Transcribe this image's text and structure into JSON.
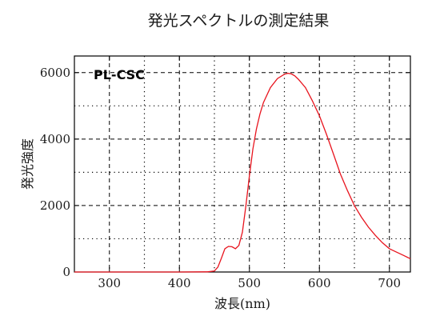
{
  "chart_data": {
    "type": "line",
    "title": "発光スペクトルの測定結果",
    "xlabel": "波長(nm)",
    "ylabel": "発光強度",
    "annotation": "PL-CSC",
    "xlim": [
      250,
      730
    ],
    "ylim": [
      0,
      6500
    ],
    "xticks": [
      300,
      400,
      500,
      600,
      700
    ],
    "yticks": [
      0,
      2000,
      4000,
      6000
    ],
    "x_minor_grid": [
      350,
      450,
      550,
      650
    ],
    "y_minor_grid": [
      1000,
      3000,
      5000
    ],
    "grid": "on",
    "line_color": "#e8141e",
    "series": [
      {
        "x": [
          250,
          400,
          440,
          450,
          455,
          460,
          465,
          470,
          475,
          480,
          485,
          490,
          495,
          500,
          505,
          510,
          515,
          520,
          530,
          540,
          550,
          555,
          560,
          565,
          570,
          580,
          590,
          600,
          610,
          620,
          630,
          640,
          650,
          660,
          670,
          680,
          690,
          700,
          710,
          720,
          730
        ],
        "y": [
          0,
          0,
          5,
          30,
          150,
          420,
          700,
          770,
          760,
          700,
          800,
          1200,
          2000,
          2900,
          3700,
          4300,
          4750,
          5100,
          5550,
          5820,
          5950,
          5980,
          5960,
          5900,
          5800,
          5550,
          5150,
          4700,
          4150,
          3550,
          2950,
          2450,
          2000,
          1650,
          1350,
          1100,
          880,
          700,
          600,
          500,
          400
        ]
      }
    ]
  }
}
